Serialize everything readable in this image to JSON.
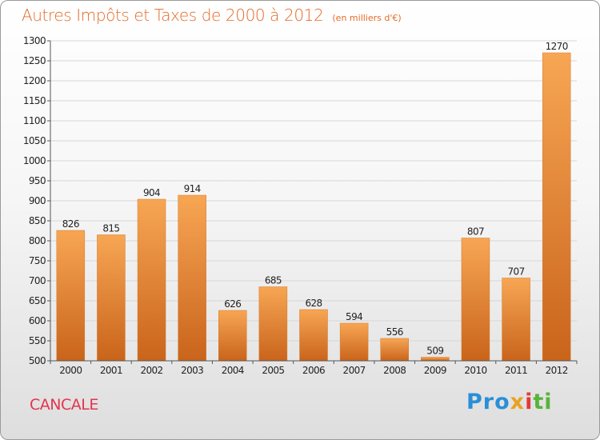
{
  "header": {
    "title": "Autres Impôts et Taxes de 2000 à 2012",
    "unit": "(en milliers d'€)"
  },
  "footer": {
    "place": "CANCALE",
    "brand_parts": [
      "Pro",
      "x",
      "i",
      "ti"
    ]
  },
  "colors": {
    "bar_top": "#f7a654",
    "bar_bottom": "#c9641b",
    "title": "#e56a28",
    "place": "#e2354e",
    "grid": "#d6d6d6"
  },
  "chart_data": {
    "type": "bar",
    "title": "Autres Impôts et Taxes de 2000 à 2012",
    "subtitle": "(en milliers d'€)",
    "xlabel": "",
    "ylabel": "",
    "categories": [
      "2000",
      "2001",
      "2002",
      "2003",
      "2004",
      "2005",
      "2006",
      "2007",
      "2008",
      "2009",
      "2010",
      "2011",
      "2012"
    ],
    "values": [
      826,
      815,
      904,
      914,
      626,
      685,
      628,
      594,
      556,
      509,
      807,
      707,
      1270
    ],
    "ylim": [
      500,
      1300
    ],
    "yticks": [
      500,
      550,
      600,
      650,
      700,
      750,
      800,
      850,
      900,
      950,
      1000,
      1050,
      1100,
      1150,
      1200,
      1250,
      1300
    ],
    "grid": true,
    "legend": "none"
  }
}
